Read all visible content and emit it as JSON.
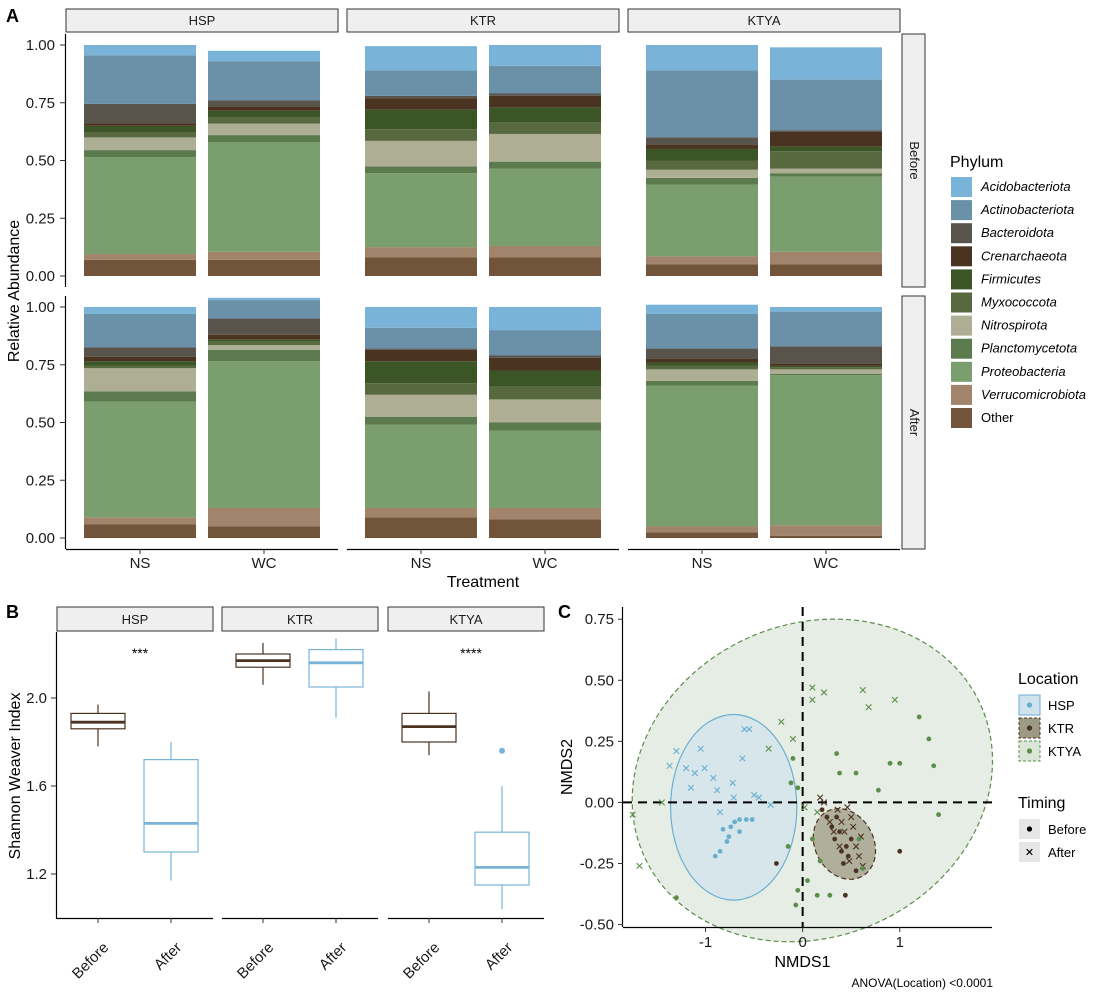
{
  "panel_letters": {
    "a": "A",
    "b": "B",
    "c": "C"
  },
  "chart_data": [
    {
      "id": "A",
      "type": "bar",
      "stacked": true,
      "facet_cols": [
        "HSP",
        "KTR",
        "KTYA"
      ],
      "facet_rows": [
        "Before",
        "After"
      ],
      "categories": [
        "NS",
        "WC"
      ],
      "xlabel": "Treatment",
      "ylabel": "Relative Abundance",
      "ylim": [
        0,
        1
      ],
      "yticks": [
        "0.00",
        "0.25",
        "0.50",
        "0.75",
        "1.00"
      ],
      "legend_title": "Phylum",
      "legend_position": "right",
      "phyla": [
        {
          "name": "Acidobacteriota",
          "color": "#79B4D8"
        },
        {
          "name": "Actinobacteriota",
          "color": "#6A91A8"
        },
        {
          "name": "Bacteroidota",
          "color": "#58534B"
        },
        {
          "name": "Crenarchaeota",
          "color": "#4B3322"
        },
        {
          "name": "Firmicutes",
          "color": "#3C5526"
        },
        {
          "name": "Myxococcota",
          "color": "#58683F"
        },
        {
          "name": "Nitrospirota",
          "color": "#AEAE94"
        },
        {
          "name": "Planctomycetota",
          "color": "#5B7A4E"
        },
        {
          "name": "Proteobacteria",
          "color": "#7A9E6D"
        },
        {
          "name": "Verrucomicrobiota",
          "color": "#A2836C"
        },
        {
          "name": "Other",
          "color": "#72543B"
        }
      ],
      "bars": {
        "Before": {
          "HSP": {
            "NS": [
              0.045,
              0.21,
              0.085,
              0.01,
              0.03,
              0.02,
              0.055,
              0.03,
              0.42,
              0.025,
              0.07
            ],
            "WC": [
              0.045,
              0.17,
              0.025,
              0.02,
              0.03,
              0.025,
              0.05,
              0.03,
              0.475,
              0.035,
              0.07
            ]
          },
          "KTR": {
            "NS": [
              0.105,
              0.11,
              0.01,
              0.05,
              0.085,
              0.05,
              0.11,
              0.03,
              0.32,
              0.045,
              0.08
            ],
            "WC": [
              0.09,
              0.12,
              0.01,
              0.05,
              0.065,
              0.05,
              0.12,
              0.03,
              0.335,
              0.05,
              0.08
            ]
          },
          "KTYA": {
            "NS": [
              0.11,
              0.29,
              0.03,
              0.02,
              0.05,
              0.04,
              0.035,
              0.03,
              0.31,
              0.035,
              0.05
            ],
            "WC": [
              0.14,
              0.22,
              0.005,
              0.065,
              0.02,
              0.075,
              0.02,
              0.015,
              0.325,
              0.055,
              0.05
            ]
          }
        },
        "After": {
          "HSP": {
            "NS": [
              0.03,
              0.145,
              0.04,
              0.02,
              0.02,
              0.01,
              0.1,
              0.045,
              0.5,
              0.03,
              0.06
            ],
            "WC": [
              0.01,
              0.08,
              0.07,
              0.02,
              0.01,
              0.015,
              0.02,
              0.05,
              0.635,
              0.08,
              0.05
            ]
          },
          "KTR": {
            "NS": [
              0.09,
              0.09,
              0.005,
              0.05,
              0.095,
              0.05,
              0.095,
              0.035,
              0.36,
              0.04,
              0.09
            ],
            "WC": [
              0.1,
              0.11,
              0.01,
              0.055,
              0.07,
              0.055,
              0.1,
              0.035,
              0.335,
              0.05,
              0.08
            ]
          },
          "KTYA": {
            "NS": [
              0.04,
              0.15,
              0.045,
              0.015,
              0.015,
              0.015,
              0.05,
              0.02,
              0.61,
              0.025,
              0.025
            ],
            "WC": [
              0.02,
              0.15,
              0.075,
              0.01,
              0.005,
              0.01,
              0.02,
              0.005,
              0.65,
              0.045,
              0.01
            ]
          }
        }
      }
    },
    {
      "id": "B",
      "type": "box",
      "facets": [
        "HSP",
        "KTR",
        "KTYA"
      ],
      "categories": [
        "Before",
        "After"
      ],
      "ylabel": "Shannon Weaver Index",
      "xlabel": "",
      "ylim": [
        1.0,
        2.3
      ],
      "yticks": [
        "1.2",
        "1.6",
        "2.0"
      ],
      "series_colors": {
        "Before": "#4B3322",
        "After": "#79B4D8"
      },
      "boxes": {
        "HSP": {
          "Before": {
            "min": 1.78,
            "q1": 1.86,
            "median": 1.89,
            "q3": 1.93,
            "max": 1.97,
            "outliers": []
          },
          "After": {
            "min": 1.17,
            "q1": 1.3,
            "median": 1.43,
            "q3": 1.72,
            "max": 1.8,
            "outliers": []
          }
        },
        "KTR": {
          "Before": {
            "min": 2.06,
            "q1": 2.14,
            "median": 2.17,
            "q3": 2.2,
            "max": 2.25,
            "outliers": []
          },
          "After": {
            "min": 1.91,
            "q1": 2.05,
            "median": 2.16,
            "q3": 2.22,
            "max": 2.27,
            "outliers": []
          }
        },
        "KTYA": {
          "Before": {
            "min": 1.74,
            "q1": 1.8,
            "median": 1.87,
            "q3": 1.93,
            "max": 2.03,
            "outliers": []
          },
          "After": {
            "min": 1.04,
            "q1": 1.15,
            "median": 1.23,
            "q3": 1.39,
            "max": 1.6,
            "outliers": [
              1.76
            ]
          }
        }
      },
      "significance": {
        "HSP": "***",
        "KTR": "",
        "KTYA": "****"
      }
    },
    {
      "id": "C",
      "type": "scatter",
      "xlabel": "NMDS1",
      "ylabel": "NMDS2",
      "xlim": [
        -1.85,
        1.95
      ],
      "ylim": [
        -0.51,
        0.8
      ],
      "xticks": [
        -1,
        0,
        1
      ],
      "xtick_labels": [
        "-1",
        "0",
        "1"
      ],
      "yticks": [
        -0.5,
        -0.25,
        0,
        0.25,
        0.5,
        0.75
      ],
      "ytick_labels": [
        "-0.50",
        "-0.25",
        "0.00",
        "0.25",
        "0.50",
        "0.75"
      ],
      "reference_lines": {
        "x": 0,
        "y": 0
      },
      "location_legend_title": "Location",
      "timing_legend_title": "Timing",
      "locations": [
        {
          "name": "HSP",
          "color": "#6AAFD2",
          "fill": "#CFE3EC"
        },
        {
          "name": "KTR",
          "color": "#4B3322",
          "fill": "#9C9A84"
        },
        {
          "name": "KTYA",
          "color": "#5B8E4A",
          "fill": "#DCE6D8"
        }
      ],
      "timings": [
        {
          "name": "Before",
          "marker": "dot"
        },
        {
          "name": "After",
          "marker": "cross"
        }
      ],
      "ellipses": [
        {
          "location": "KTYA",
          "cx": 0.1,
          "cy": 0.09,
          "rx": 1.9,
          "ry": 0.64,
          "angle_deg": 24
        },
        {
          "location": "HSP",
          "cx": -0.71,
          "cy": -0.02,
          "rx": 0.65,
          "ry": 0.38,
          "angle_deg": 0
        },
        {
          "location": "KTR",
          "cx": 0.43,
          "cy": -0.17,
          "rx": 0.38,
          "ry": 0.12,
          "angle_deg": -62
        }
      ],
      "points": [
        {
          "loc": "HSP",
          "t": "After",
          "x": -1.37,
          "y": 0.15
        },
        {
          "loc": "HSP",
          "t": "After",
          "x": -1.3,
          "y": 0.21
        },
        {
          "loc": "HSP",
          "t": "After",
          "x": -1.2,
          "y": 0.14
        },
        {
          "loc": "HSP",
          "t": "After",
          "x": -1.15,
          "y": 0.06
        },
        {
          "loc": "HSP",
          "t": "After",
          "x": -1.11,
          "y": 0.12
        },
        {
          "loc": "HSP",
          "t": "After",
          "x": -1.05,
          "y": 0.22
        },
        {
          "loc": "HSP",
          "t": "After",
          "x": -1.01,
          "y": 0.14
        },
        {
          "loc": "HSP",
          "t": "After",
          "x": -0.92,
          "y": 0.1
        },
        {
          "loc": "HSP",
          "t": "After",
          "x": -0.88,
          "y": 0.05
        },
        {
          "loc": "HSP",
          "t": "After",
          "x": -0.72,
          "y": 0.08
        },
        {
          "loc": "HSP",
          "t": "After",
          "x": -0.62,
          "y": 0.18
        },
        {
          "loc": "HSP",
          "t": "After",
          "x": -0.6,
          "y": 0.3
        },
        {
          "loc": "HSP",
          "t": "After",
          "x": -0.55,
          "y": 0.3
        },
        {
          "loc": "HSP",
          "t": "After",
          "x": -0.5,
          "y": 0.03
        },
        {
          "loc": "HSP",
          "t": "After",
          "x": -0.45,
          "y": 0.02
        },
        {
          "loc": "HSP",
          "t": "After",
          "x": -0.33,
          "y": -0.01
        },
        {
          "loc": "HSP",
          "t": "After",
          "x": -0.85,
          "y": -0.04
        },
        {
          "loc": "HSP",
          "t": "After",
          "x": -0.71,
          "y": 0.02
        },
        {
          "loc": "HSP",
          "t": "Before",
          "x": -0.82,
          "y": -0.11
        },
        {
          "loc": "HSP",
          "t": "Before",
          "x": -0.85,
          "y": -0.2
        },
        {
          "loc": "HSP",
          "t": "Before",
          "x": -0.9,
          "y": -0.22
        },
        {
          "loc": "HSP",
          "t": "Before",
          "x": -0.78,
          "y": -0.16
        },
        {
          "loc": "HSP",
          "t": "Before",
          "x": -0.74,
          "y": -0.1
        },
        {
          "loc": "HSP",
          "t": "Before",
          "x": -0.7,
          "y": -0.08
        },
        {
          "loc": "HSP",
          "t": "Before",
          "x": -0.65,
          "y": -0.07
        },
        {
          "loc": "HSP",
          "t": "Before",
          "x": -0.58,
          "y": -0.07
        },
        {
          "loc": "HSP",
          "t": "Before",
          "x": -0.52,
          "y": -0.07
        },
        {
          "loc": "HSP",
          "t": "Before",
          "x": -0.76,
          "y": -0.14
        },
        {
          "loc": "HSP",
          "t": "Before",
          "x": -0.65,
          "y": -0.12
        },
        {
          "loc": "KTR",
          "t": "Before",
          "x": 0.2,
          "y": -0.03
        },
        {
          "loc": "KTR",
          "t": "Before",
          "x": 0.25,
          "y": -0.06
        },
        {
          "loc": "KTR",
          "t": "Before",
          "x": 0.3,
          "y": -0.1
        },
        {
          "loc": "KTR",
          "t": "Before",
          "x": 0.33,
          "y": -0.15
        },
        {
          "loc": "KTR",
          "t": "Before",
          "x": 0.38,
          "y": -0.12
        },
        {
          "loc": "KTR",
          "t": "Before",
          "x": 0.4,
          "y": -0.2
        },
        {
          "loc": "KTR",
          "t": "Before",
          "x": 0.42,
          "y": -0.25
        },
        {
          "loc": "KTR",
          "t": "Before",
          "x": 0.45,
          "y": -0.18
        },
        {
          "loc": "KTR",
          "t": "Before",
          "x": 0.47,
          "y": -0.22
        },
        {
          "loc": "KTR",
          "t": "Before",
          "x": 0.5,
          "y": -0.15
        },
        {
          "loc": "KTR",
          "t": "Before",
          "x": 0.55,
          "y": -0.28
        },
        {
          "loc": "KTR",
          "t": "Before",
          "x": 0.44,
          "y": -0.38
        },
        {
          "loc": "KTR",
          "t": "Before",
          "x": 0.35,
          "y": -0.06
        },
        {
          "loc": "KTR",
          "t": "Before",
          "x": 1.0,
          "y": -0.2
        },
        {
          "loc": "KTR",
          "t": "Before",
          "x": -0.27,
          "y": -0.25
        },
        {
          "loc": "KTR",
          "t": "After",
          "x": 0.18,
          "y": 0.02
        },
        {
          "loc": "KTR",
          "t": "After",
          "x": 0.22,
          "y": 0.0
        },
        {
          "loc": "KTR",
          "t": "After",
          "x": 0.28,
          "y": -0.08
        },
        {
          "loc": "KTR",
          "t": "After",
          "x": 0.32,
          "y": -0.12
        },
        {
          "loc": "KTR",
          "t": "After",
          "x": 0.36,
          "y": -0.03
        },
        {
          "loc": "KTR",
          "t": "After",
          "x": 0.4,
          "y": -0.08
        },
        {
          "loc": "KTR",
          "t": "After",
          "x": 0.43,
          "y": -0.12
        },
        {
          "loc": "KTR",
          "t": "After",
          "x": 0.46,
          "y": -0.02
        },
        {
          "loc": "KTR",
          "t": "After",
          "x": 0.5,
          "y": -0.06
        },
        {
          "loc": "KTR",
          "t": "After",
          "x": 0.52,
          "y": -0.1
        },
        {
          "loc": "KTR",
          "t": "After",
          "x": 0.55,
          "y": -0.18
        },
        {
          "loc": "KTR",
          "t": "After",
          "x": 0.58,
          "y": -0.22
        },
        {
          "loc": "KTR",
          "t": "After",
          "x": 0.6,
          "y": -0.14
        },
        {
          "loc": "KTR",
          "t": "After",
          "x": 0.38,
          "y": -0.18
        },
        {
          "loc": "KTR",
          "t": "After",
          "x": 0.48,
          "y": -0.24
        },
        {
          "loc": "KTR",
          "t": "After",
          "x": 0.62,
          "y": -0.26
        },
        {
          "loc": "KTYA",
          "t": "After",
          "x": -1.75,
          "y": -0.05
        },
        {
          "loc": "KTYA",
          "t": "After",
          "x": -1.68,
          "y": -0.26
        },
        {
          "loc": "KTYA",
          "t": "After",
          "x": -1.45,
          "y": 0.0
        },
        {
          "loc": "KTYA",
          "t": "After",
          "x": -0.35,
          "y": 0.22
        },
        {
          "loc": "KTYA",
          "t": "After",
          "x": -0.22,
          "y": 0.33
        },
        {
          "loc": "KTYA",
          "t": "After",
          "x": -0.1,
          "y": 0.26
        },
        {
          "loc": "KTYA",
          "t": "After",
          "x": 0.1,
          "y": 0.47
        },
        {
          "loc": "KTYA",
          "t": "After",
          "x": 0.1,
          "y": 0.42
        },
        {
          "loc": "KTYA",
          "t": "After",
          "x": 0.22,
          "y": 0.45
        },
        {
          "loc": "KTYA",
          "t": "After",
          "x": 0.62,
          "y": 0.46
        },
        {
          "loc": "KTYA",
          "t": "After",
          "x": 0.68,
          "y": 0.39
        },
        {
          "loc": "KTYA",
          "t": "After",
          "x": 0.95,
          "y": 0.42
        },
        {
          "loc": "KTYA",
          "t": "After",
          "x": 0.02,
          "y": -0.02
        },
        {
          "loc": "KTYA",
          "t": "After",
          "x": 0.15,
          "y": -0.04
        },
        {
          "loc": "KTYA",
          "t": "Before",
          "x": -1.3,
          "y": -0.39
        },
        {
          "loc": "KTYA",
          "t": "Before",
          "x": -0.1,
          "y": 0.18
        },
        {
          "loc": "KTYA",
          "t": "Before",
          "x": -0.12,
          "y": 0.08
        },
        {
          "loc": "KTYA",
          "t": "Before",
          "x": -0.05,
          "y": 0.06
        },
        {
          "loc": "KTYA",
          "t": "Before",
          "x": -0.15,
          "y": -0.18
        },
        {
          "loc": "KTYA",
          "t": "Before",
          "x": -0.05,
          "y": -0.36
        },
        {
          "loc": "KTYA",
          "t": "Before",
          "x": -0.07,
          "y": -0.42
        },
        {
          "loc": "KTYA",
          "t": "Before",
          "x": 0.05,
          "y": -0.32
        },
        {
          "loc": "KTYA",
          "t": "Before",
          "x": 0.15,
          "y": -0.38
        },
        {
          "loc": "KTYA",
          "t": "Before",
          "x": 0.28,
          "y": -0.38
        },
        {
          "loc": "KTYA",
          "t": "Before",
          "x": 0.1,
          "y": -0.15
        },
        {
          "loc": "KTYA",
          "t": "Before",
          "x": 0.18,
          "y": -0.24
        },
        {
          "loc": "KTYA",
          "t": "Before",
          "x": 0.35,
          "y": 0.2
        },
        {
          "loc": "KTYA",
          "t": "Before",
          "x": 0.38,
          "y": 0.12
        },
        {
          "loc": "KTYA",
          "t": "Before",
          "x": 0.55,
          "y": 0.12
        },
        {
          "loc": "KTYA",
          "t": "Before",
          "x": 0.78,
          "y": 0.05
        },
        {
          "loc": "KTYA",
          "t": "Before",
          "x": 0.9,
          "y": 0.16
        },
        {
          "loc": "KTYA",
          "t": "Before",
          "x": 1.0,
          "y": 0.16
        },
        {
          "loc": "KTYA",
          "t": "Before",
          "x": 1.2,
          "y": 0.35
        },
        {
          "loc": "KTYA",
          "t": "Before",
          "x": 1.3,
          "y": 0.26
        },
        {
          "loc": "KTYA",
          "t": "Before",
          "x": 1.35,
          "y": 0.15
        },
        {
          "loc": "KTYA",
          "t": "Before",
          "x": 1.4,
          "y": -0.05
        },
        {
          "loc": "KTYA",
          "t": "Before",
          "x": 0.58,
          "y": -0.15
        },
        {
          "loc": "KTYA",
          "t": "Before",
          "x": 0.62,
          "y": -0.27
        }
      ],
      "annotation": "ANOVA(Location) <0.0001"
    }
  ]
}
